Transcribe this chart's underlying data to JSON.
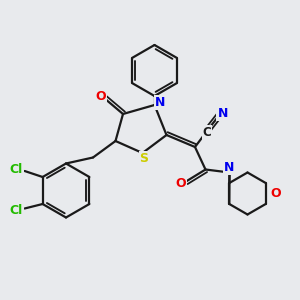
{
  "bg_color": "#e8eaed",
  "atom_colors": {
    "N": "#0000ee",
    "O": "#ee0000",
    "S": "#cccc00",
    "Cl": "#22bb00",
    "C": "#1a1a1a"
  },
  "line_color": "#1a1a1a",
  "line_width": 1.6
}
